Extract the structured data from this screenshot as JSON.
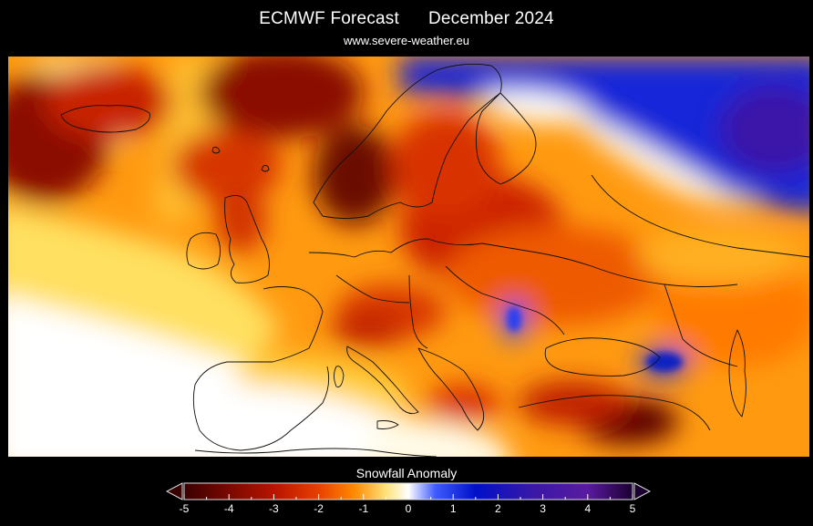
{
  "header": {
    "title_left": "ECMWF Forecast",
    "title_right": "December 2024",
    "source": "www.severe-weather.eu"
  },
  "legend": {
    "title": "Snowfall Anomaly",
    "ticks": [
      "-5",
      "-4",
      "-3",
      "-2",
      "-1",
      "0",
      "1",
      "2",
      "3",
      "4",
      "5"
    ],
    "colors": {
      "strong_negative": "#3a0000",
      "negative": "#b81400",
      "mild_negative": "#ff8a00",
      "weak_negative": "#ffe27a",
      "neutral": "#ffffff",
      "weak_positive": "#3f5cff",
      "positive": "#0010c8",
      "strong_positive": "#5a1aa0",
      "extreme_positive": "#1a0030"
    }
  },
  "map": {
    "region": "Europe",
    "variable": "Snowfall Anomaly",
    "period": "December 2024"
  }
}
